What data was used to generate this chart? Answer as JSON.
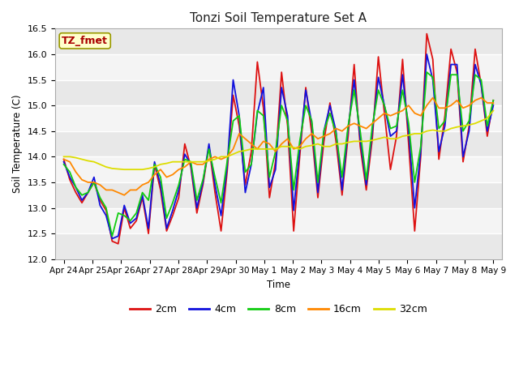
{
  "title": "Tonzi Soil Temperature Set A",
  "ylabel": "Soil Temperature (C)",
  "xlabel": "Time",
  "annotation": "TZ_fmet",
  "ylim": [
    12.0,
    16.5
  ],
  "tick_labels": [
    "Apr 24",
    "Apr 25",
    "Apr 26",
    "Apr 27",
    "Apr 28",
    "Apr 29",
    "Apr 30",
    "May 1",
    "May 2",
    "May 3",
    "May 4",
    "May 5",
    "May 6",
    "May 7",
    "May 8",
    "May 9"
  ],
  "legend": [
    "2cm",
    "4cm",
    "8cm",
    "16cm",
    "32cm"
  ],
  "colors": [
    "#dd1111",
    "#1111dd",
    "#11cc11",
    "#ff8800",
    "#dddd00"
  ],
  "yticks": [
    12.0,
    12.5,
    13.0,
    13.5,
    14.0,
    14.5,
    15.0,
    15.5,
    16.0,
    16.5
  ],
  "series": {
    "2cm": [
      13.95,
      13.55,
      13.3,
      13.1,
      13.3,
      13.5,
      13.15,
      12.95,
      12.35,
      12.3,
      13.0,
      12.6,
      12.75,
      13.2,
      12.5,
      13.85,
      13.35,
      12.55,
      12.85,
      13.2,
      14.25,
      13.8,
      12.9,
      13.45,
      14.2,
      13.3,
      12.55,
      13.7,
      15.2,
      14.6,
      13.45,
      14.1,
      15.85,
      14.95,
      13.2,
      13.9,
      15.65,
      14.6,
      12.55,
      14.0,
      15.35,
      14.45,
      13.2,
      14.3,
      15.05,
      14.3,
      13.25,
      14.4,
      15.8,
      14.2,
      13.35,
      14.35,
      15.95,
      14.85,
      13.75,
      14.4,
      15.9,
      14.25,
      12.55,
      14.0,
      16.4,
      15.9,
      13.95,
      14.8,
      16.1,
      15.65,
      13.9,
      14.6,
      16.1,
      15.4,
      14.4,
      15.1
    ],
    "4cm": [
      13.9,
      13.6,
      13.4,
      13.15,
      13.3,
      13.6,
      13.05,
      12.85,
      12.4,
      12.45,
      13.05,
      12.7,
      12.8,
      13.25,
      12.6,
      13.9,
      13.45,
      12.6,
      12.95,
      13.35,
      14.05,
      13.85,
      13.0,
      13.5,
      14.25,
      13.45,
      12.85,
      13.8,
      15.5,
      14.8,
      13.3,
      13.85,
      14.85,
      15.35,
      13.4,
      13.75,
      15.35,
      14.8,
      12.95,
      14.15,
      15.3,
      14.65,
      13.3,
      14.5,
      15.0,
      14.5,
      13.35,
      14.55,
      15.5,
      14.35,
      13.45,
      14.5,
      15.55,
      15.0,
      14.4,
      14.5,
      15.6,
      14.5,
      13.0,
      14.1,
      16.0,
      15.5,
      14.1,
      14.6,
      15.8,
      15.8,
      14.0,
      14.5,
      15.8,
      15.4,
      14.5,
      15.0
    ],
    "8cm": [
      13.85,
      13.7,
      13.4,
      13.25,
      13.3,
      13.5,
      13.2,
      13.0,
      12.45,
      12.9,
      12.85,
      12.75,
      12.9,
      13.3,
      13.15,
      13.85,
      13.6,
      12.8,
      13.1,
      13.45,
      13.95,
      13.9,
      13.15,
      13.55,
      14.15,
      13.6,
      13.1,
      13.9,
      14.7,
      14.8,
      13.7,
      13.85,
      14.9,
      14.8,
      13.6,
      14.1,
      15.0,
      14.7,
      13.35,
      14.3,
      15.0,
      14.7,
      13.5,
      14.5,
      14.85,
      14.45,
      13.6,
      14.6,
      15.3,
      14.5,
      13.55,
      14.6,
      15.3,
      15.0,
      14.55,
      14.6,
      15.3,
      14.65,
      13.5,
      14.2,
      15.65,
      15.55,
      14.55,
      14.7,
      15.6,
      15.6,
      14.5,
      14.7,
      15.6,
      15.5,
      14.6,
      15.1
    ],
    "16cm": [
      13.95,
      13.9,
      13.7,
      13.55,
      13.5,
      13.5,
      13.45,
      13.35,
      13.35,
      13.3,
      13.25,
      13.35,
      13.35,
      13.45,
      13.5,
      13.65,
      13.75,
      13.6,
      13.65,
      13.75,
      13.8,
      13.9,
      13.85,
      13.85,
      13.95,
      14.0,
      13.95,
      14.0,
      14.15,
      14.45,
      14.35,
      14.25,
      14.15,
      14.3,
      14.25,
      14.1,
      14.25,
      14.35,
      14.15,
      14.2,
      14.35,
      14.45,
      14.35,
      14.4,
      14.45,
      14.55,
      14.5,
      14.6,
      14.65,
      14.6,
      14.55,
      14.65,
      14.75,
      14.85,
      14.8,
      14.85,
      14.9,
      15.0,
      14.85,
      14.8,
      15.0,
      15.15,
      14.95,
      14.95,
      15.0,
      15.1,
      14.95,
      15.0,
      15.1,
      15.15,
      15.05,
      15.05
    ],
    "32cm": [
      14.0,
      14.0,
      13.98,
      13.95,
      13.92,
      13.9,
      13.85,
      13.8,
      13.77,
      13.76,
      13.75,
      13.75,
      13.75,
      13.75,
      13.77,
      13.8,
      13.85,
      13.87,
      13.9,
      13.9,
      13.9,
      13.9,
      13.9,
      13.9,
      13.92,
      13.95,
      14.0,
      14.0,
      14.05,
      14.1,
      14.12,
      14.15,
      14.15,
      14.15,
      14.15,
      14.15,
      14.2,
      14.2,
      14.18,
      14.15,
      14.2,
      14.22,
      14.25,
      14.2,
      14.2,
      14.25,
      14.25,
      14.28,
      14.3,
      14.3,
      14.3,
      14.32,
      14.35,
      14.38,
      14.35,
      14.35,
      14.4,
      14.42,
      14.45,
      14.45,
      14.5,
      14.52,
      14.5,
      14.5,
      14.55,
      14.58,
      14.6,
      14.62,
      14.65,
      14.7,
      14.75,
      14.9
    ]
  }
}
